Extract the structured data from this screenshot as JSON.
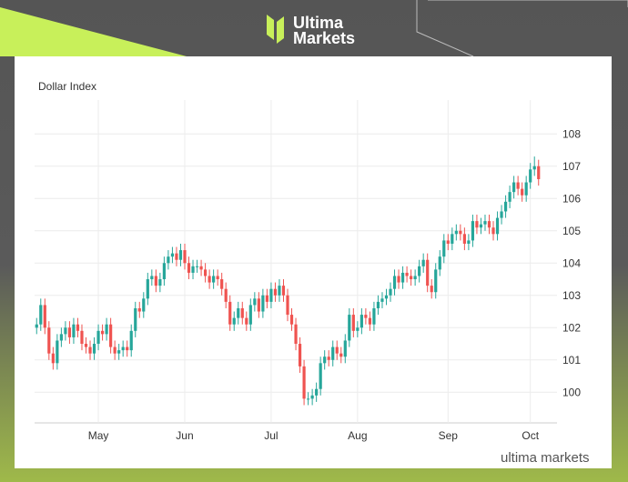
{
  "brand": {
    "line1": "Ultima",
    "line2": "Markets"
  },
  "watermark": "ultima markets",
  "chart_data": {
    "type": "candlestick",
    "title": "Dollar Index",
    "up_color": "#26a69a",
    "down_color": "#ef5350",
    "grid": true,
    "ylim": [
      99.05,
      109.05
    ],
    "yticks": [
      100,
      101,
      102,
      103,
      104,
      105,
      106,
      107,
      108
    ],
    "categories": [
      null,
      null,
      null,
      null,
      null,
      null,
      null,
      null,
      null,
      null,
      null,
      null,
      null,
      null,
      null,
      "May",
      null,
      null,
      null,
      null,
      null,
      null,
      null,
      null,
      null,
      null,
      null,
      null,
      null,
      null,
      null,
      null,
      null,
      null,
      null,
      null,
      "Jun",
      null,
      null,
      null,
      null,
      null,
      null,
      null,
      null,
      null,
      null,
      null,
      null,
      null,
      null,
      null,
      null,
      null,
      null,
      null,
      null,
      "Jul",
      null,
      null,
      null,
      null,
      null,
      null,
      null,
      null,
      null,
      null,
      null,
      null,
      null,
      null,
      null,
      null,
      null,
      null,
      null,
      null,
      "Aug",
      null,
      null,
      null,
      null,
      null,
      null,
      null,
      null,
      null,
      null,
      null,
      null,
      null,
      null,
      null,
      null,
      null,
      null,
      null,
      null,
      null,
      "Sep",
      null,
      null,
      null,
      null,
      null,
      null,
      null,
      null,
      null,
      null,
      null,
      null,
      null,
      null,
      null,
      null,
      null,
      null,
      null,
      "Oct",
      null,
      null
    ],
    "open": [
      102.0,
      102.1,
      102.7,
      102.0,
      101.2,
      100.9,
      101.6,
      101.8,
      102.0,
      101.7,
      102.1,
      101.9,
      101.5,
      101.4,
      101.2,
      101.5,
      101.9,
      101.8,
      102.1,
      101.4,
      101.2,
      101.3,
      101.4,
      101.3,
      101.9,
      102.6,
      102.5,
      102.9,
      103.5,
      103.6,
      103.3,
      103.5,
      104.0,
      104.2,
      104.3,
      104.1,
      104.4,
      104.0,
      103.7,
      103.9,
      103.9,
      103.8,
      103.6,
      103.4,
      103.6,
      103.5,
      103.2,
      102.8,
      102.1,
      102.3,
      102.6,
      102.3,
      102.1,
      102.7,
      102.9,
      102.5,
      103.0,
      102.8,
      103.2,
      103.0,
      103.3,
      103.0,
      102.4,
      102.1,
      101.5,
      100.8,
      99.8,
      99.8,
      99.9,
      100.1,
      100.9,
      101.1,
      101.0,
      101.4,
      101.2,
      101.1,
      101.6,
      102.4,
      101.9,
      102.0,
      102.4,
      102.3,
      102.1,
      102.6,
      102.8,
      102.9,
      103.0,
      103.2,
      103.6,
      103.4,
      103.7,
      103.6,
      103.5,
      103.6,
      103.9,
      104.1,
      103.3,
      103.1,
      103.8,
      104.2,
      104.7,
      104.6,
      104.9,
      105.0,
      104.9,
      104.6,
      104.7,
      105.3,
      105.1,
      105.2,
      105.3,
      105.1,
      104.9,
      105.4,
      105.6,
      105.9,
      106.2,
      106.5,
      106.3,
      106.1,
      106.5,
      106.9,
      107.0
    ],
    "high": [
      102.3,
      102.9,
      102.9,
      102.2,
      101.4,
      101.8,
      102.0,
      102.2,
      102.2,
      102.3,
      102.3,
      102.1,
      101.7,
      101.6,
      101.7,
      102.1,
      102.1,
      102.3,
      102.3,
      101.6,
      101.5,
      101.6,
      101.6,
      102.1,
      102.8,
      102.8,
      103.1,
      103.7,
      103.8,
      103.8,
      103.7,
      104.2,
      104.4,
      104.5,
      104.5,
      104.6,
      104.6,
      104.2,
      104.1,
      104.1,
      104.1,
      104.0,
      103.8,
      103.8,
      103.8,
      103.7,
      103.4,
      103.0,
      102.5,
      102.8,
      102.8,
      102.5,
      102.9,
      103.1,
      103.1,
      103.2,
      103.2,
      103.4,
      103.4,
      103.5,
      103.5,
      103.2,
      102.6,
      102.3,
      101.7,
      101.0,
      100.0,
      100.1,
      100.3,
      101.1,
      101.3,
      101.3,
      101.6,
      101.6,
      101.4,
      101.8,
      102.6,
      102.6,
      102.2,
      102.6,
      102.6,
      102.5,
      102.8,
      103.0,
      103.1,
      103.2,
      103.4,
      103.8,
      103.8,
      103.9,
      103.9,
      103.8,
      103.8,
      104.1,
      104.3,
      104.3,
      103.5,
      104.0,
      104.4,
      104.9,
      104.9,
      105.1,
      105.2,
      105.2,
      105.1,
      104.9,
      105.5,
      105.5,
      105.4,
      105.5,
      105.5,
      105.3,
      105.6,
      105.8,
      106.1,
      106.4,
      106.7,
      106.7,
      106.5,
      106.7,
      107.1,
      107.3,
      107.2
    ],
    "low": [
      101.8,
      101.9,
      101.8,
      101.0,
      100.7,
      100.7,
      101.4,
      101.6,
      101.5,
      101.5,
      101.7,
      101.3,
      101.2,
      101.0,
      101.0,
      101.3,
      101.6,
      101.6,
      101.2,
      101.0,
      101.0,
      101.1,
      101.1,
      101.1,
      101.7,
      102.3,
      102.3,
      102.7,
      103.3,
      103.1,
      103.1,
      103.3,
      103.8,
      104.0,
      103.9,
      103.9,
      103.8,
      103.5,
      103.5,
      103.7,
      103.6,
      103.4,
      103.2,
      103.2,
      103.3,
      103.0,
      102.6,
      101.9,
      101.9,
      102.1,
      102.1,
      101.9,
      101.9,
      102.5,
      102.3,
      102.3,
      102.6,
      102.6,
      102.8,
      102.8,
      102.8,
      102.2,
      101.9,
      101.3,
      100.6,
      99.6,
      99.6,
      99.6,
      99.7,
      99.9,
      100.7,
      100.8,
      100.8,
      101.0,
      100.9,
      100.9,
      101.4,
      101.7,
      101.7,
      101.8,
      102.1,
      101.9,
      101.9,
      102.4,
      102.6,
      102.7,
      102.8,
      103.0,
      103.2,
      103.2,
      103.4,
      103.3,
      103.3,
      103.4,
      103.7,
      103.1,
      102.9,
      102.9,
      103.6,
      104.0,
      104.4,
      104.4,
      104.7,
      104.7,
      104.4,
      104.4,
      104.5,
      104.9,
      104.9,
      105.0,
      104.9,
      104.7,
      104.7,
      105.2,
      105.4,
      105.7,
      106.0,
      106.1,
      105.9,
      105.9,
      106.3,
      106.7,
      106.4
    ],
    "close": [
      102.1,
      102.7,
      102.0,
      101.2,
      100.9,
      101.6,
      101.8,
      102.0,
      101.7,
      102.1,
      101.9,
      101.5,
      101.4,
      101.2,
      101.5,
      101.9,
      101.8,
      102.1,
      101.4,
      101.2,
      101.3,
      101.4,
      101.3,
      101.9,
      102.6,
      102.5,
      102.9,
      103.5,
      103.6,
      103.3,
      103.5,
      104.0,
      104.2,
      104.3,
      104.1,
      104.4,
      104.0,
      103.7,
      103.9,
      103.9,
      103.8,
      103.6,
      103.4,
      103.6,
      103.5,
      103.2,
      102.8,
      102.1,
      102.3,
      102.6,
      102.3,
      102.1,
      102.7,
      102.9,
      102.5,
      103.0,
      102.8,
      103.2,
      103.0,
      103.3,
      103.0,
      102.4,
      102.1,
      101.5,
      100.8,
      99.8,
      99.8,
      99.9,
      100.1,
      100.9,
      101.1,
      101.0,
      101.4,
      101.2,
      101.1,
      101.6,
      102.4,
      101.9,
      102.0,
      102.4,
      102.3,
      102.1,
      102.6,
      102.8,
      102.9,
      103.0,
      103.2,
      103.6,
      103.4,
      103.7,
      103.6,
      103.5,
      103.6,
      103.9,
      104.1,
      103.3,
      103.1,
      103.8,
      104.2,
      104.7,
      104.6,
      104.9,
      105.0,
      104.9,
      104.6,
      104.7,
      105.3,
      105.1,
      105.2,
      105.3,
      105.1,
      104.9,
      105.4,
      105.6,
      105.9,
      106.2,
      106.5,
      106.3,
      106.1,
      106.5,
      106.9,
      107.0,
      106.6
    ]
  }
}
